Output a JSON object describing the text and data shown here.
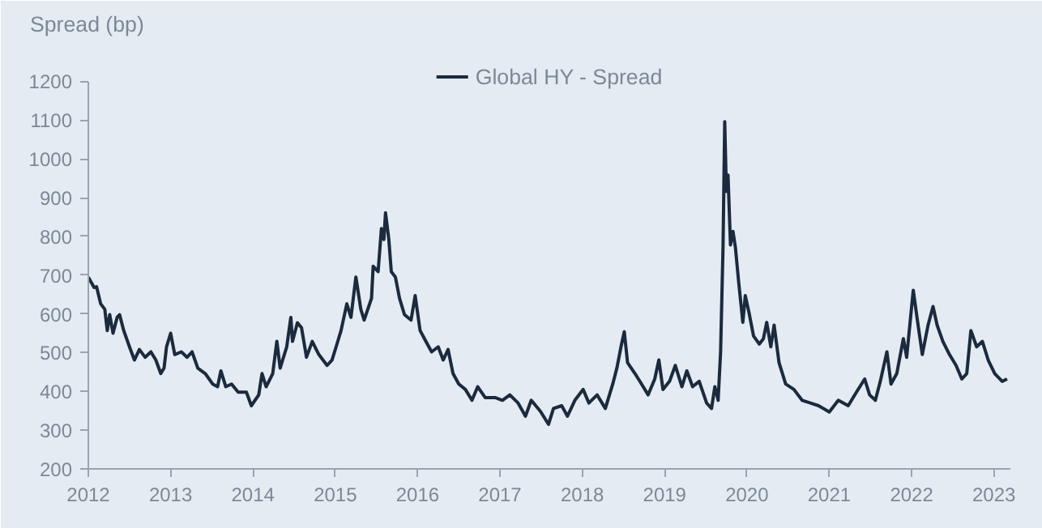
{
  "chart_data": {
    "type": "line",
    "ylabel": "Spread (bp)",
    "legend": "top",
    "grid": false,
    "line_style": "solid",
    "marker": "none",
    "xlim": [
      2012,
      2023.2
    ],
    "ylim": [
      200,
      1200
    ],
    "xticks": [
      2012,
      2013,
      2014,
      2015,
      2016,
      2017,
      2018,
      2019,
      2020,
      2021,
      2022,
      2023
    ],
    "yticks": [
      200,
      300,
      400,
      500,
      600,
      700,
      800,
      900,
      1000,
      1100,
      1200
    ],
    "series": [
      {
        "name": "Global HY - Spread",
        "color": "#1b2a3d",
        "x": [
          2012.0,
          2012.07,
          2012.1,
          2012.15,
          2012.2,
          2012.23,
          2012.26,
          2012.3,
          2012.35,
          2012.38,
          2012.43,
          2012.5,
          2012.56,
          2012.62,
          2012.69,
          2012.76,
          2012.82,
          2012.88,
          2012.92,
          2012.95,
          2013.0,
          2013.05,
          2013.13,
          2013.2,
          2013.26,
          2013.33,
          2013.42,
          2013.51,
          2013.57,
          2013.61,
          2013.67,
          2013.74,
          2013.82,
          2013.92,
          2013.98,
          2014.07,
          2014.11,
          2014.16,
          2014.24,
          2014.29,
          2014.33,
          2014.41,
          2014.46,
          2014.48,
          2014.54,
          2014.59,
          2014.65,
          2014.72,
          2014.8,
          2014.9,
          2014.96,
          2015.01,
          2015.07,
          2015.14,
          2015.19,
          2015.25,
          2015.31,
          2015.35,
          2015.44,
          2015.46,
          2015.52,
          2015.56,
          2015.59,
          2015.61,
          2015.65,
          2015.68,
          2015.73,
          2015.78,
          2015.84,
          2015.92,
          2015.97,
          2016.03,
          2016.1,
          2016.17,
          2016.25,
          2016.31,
          2016.37,
          2016.43,
          2016.5,
          2016.58,
          2016.66,
          2016.73,
          2016.82,
          2016.94,
          2017.03,
          2017.12,
          2017.22,
          2017.31,
          2017.38,
          2017.49,
          2017.59,
          2017.65,
          2017.75,
          2017.82,
          2017.91,
          2018.01,
          2018.08,
          2018.18,
          2018.28,
          2018.37,
          2018.42,
          2018.47,
          2018.51,
          2018.55,
          2018.64,
          2018.72,
          2018.8,
          2018.88,
          2018.93,
          2018.98,
          2019.06,
          2019.13,
          2019.21,
          2019.27,
          2019.34,
          2019.42,
          2019.51,
          2019.57,
          2019.61,
          2019.65,
          2019.68,
          2019.71,
          2019.73,
          2019.75,
          2019.77,
          2019.8,
          2019.83,
          2019.86,
          2019.9,
          2019.95,
          2019.98,
          2020.03,
          2020.08,
          2020.15,
          2020.2,
          2020.24,
          2020.29,
          2020.33,
          2020.39,
          2020.47,
          2020.57,
          2020.67,
          2020.77,
          2020.87,
          2021.0,
          2021.11,
          2021.23,
          2021.33,
          2021.43,
          2021.49,
          2021.56,
          2021.62,
          2021.7,
          2021.75,
          2021.82,
          2021.9,
          2021.94,
          2022.02,
          2022.07,
          2022.13,
          2022.2,
          2022.26,
          2022.31,
          2022.38,
          2022.46,
          2022.54,
          2022.61,
          2022.67,
          2022.72,
          2022.79,
          2022.86,
          2022.93,
          2023.01,
          2023.1,
          2023.16
        ],
        "values": [
          695,
          668,
          670,
          626,
          612,
          557,
          598,
          550,
          591,
          598,
          557,
          515,
          481,
          508,
          488,
          502,
          481,
          446,
          460,
          515,
          550,
          495,
          502,
          488,
          502,
          460,
          446,
          419,
          412,
          453,
          412,
          419,
          398,
          398,
          363,
          391,
          446,
          412,
          446,
          529,
          460,
          515,
          591,
          529,
          577,
          564,
          488,
          529,
          495,
          467,
          481,
          515,
          557,
          626,
          591,
          695,
          612,
          584,
          640,
          723,
          709,
          820,
          792,
          861,
          792,
          709,
          695,
          640,
          598,
          584,
          647,
          557,
          529,
          502,
          515,
          481,
          508,
          446,
          419,
          405,
          377,
          412,
          384,
          384,
          377,
          391,
          370,
          336,
          377,
          349,
          315,
          356,
          363,
          336,
          377,
          405,
          370,
          391,
          356,
          419,
          460,
          515,
          554,
          474,
          446,
          419,
          391,
          432,
          481,
          405,
          426,
          467,
          412,
          453,
          412,
          426,
          370,
          356,
          412,
          377,
          502,
          778,
          1096,
          916,
          958,
          778,
          813,
          771,
          681,
          578,
          647,
          598,
          543,
          522,
          536,
          578,
          515,
          571,
          474,
          419,
          405,
          377,
          370,
          363,
          347,
          377,
          363,
          398,
          432,
          391,
          377,
          426,
          502,
          419,
          446,
          536,
          488,
          661,
          584,
          495,
          571,
          619,
          571,
          529,
          495,
          467,
          432,
          446,
          557,
          515,
          529,
          481,
          446,
          426,
          432
        ]
      }
    ]
  }
}
